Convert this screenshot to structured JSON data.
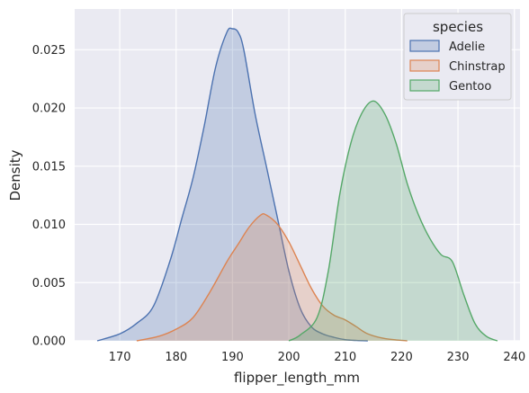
{
  "chart_data": {
    "type": "area",
    "xlabel": "flipper_length_mm",
    "ylabel": "Density",
    "xlim": [
      162,
      241
    ],
    "ylim": [
      0,
      0.0285
    ],
    "xticks": [
      170,
      180,
      190,
      200,
      210,
      220,
      230,
      240
    ],
    "yticks": [
      0.0,
      0.005,
      0.01,
      0.015,
      0.02,
      0.025
    ],
    "ytick_labels": [
      "0.000",
      "0.005",
      "0.010",
      "0.015",
      "0.020",
      "0.025"
    ],
    "grid": true,
    "background": "#eaeaf2",
    "legend": {
      "title": "species",
      "placement": "top-right"
    },
    "series": [
      {
        "name": "Adelie",
        "color": "#4c72b0",
        "x": [
          166,
          170,
          173,
          176,
          179,
          181,
          183,
          185,
          187,
          189,
          190,
          191,
          192,
          194,
          196,
          198,
          200,
          202,
          204,
          206,
          208,
          210,
          212,
          214
        ],
        "y": [
          0.0,
          0.0006,
          0.0015,
          0.003,
          0.007,
          0.0105,
          0.014,
          0.0185,
          0.0235,
          0.0265,
          0.0268,
          0.0265,
          0.025,
          0.0195,
          0.015,
          0.0105,
          0.006,
          0.0028,
          0.0012,
          0.0006,
          0.0003,
          0.0001,
          3e-05,
          0.0
        ]
      },
      {
        "name": "Chinstrap",
        "color": "#dd8452",
        "x": [
          173,
          177,
          180,
          183,
          186,
          189,
          191,
          193,
          195,
          196,
          198,
          200,
          202,
          204,
          206,
          208,
          210,
          212,
          214,
          217,
          221
        ],
        "y": [
          0.0,
          0.0004,
          0.001,
          0.002,
          0.0042,
          0.0068,
          0.0083,
          0.0098,
          0.0108,
          0.0108,
          0.01,
          0.0085,
          0.0065,
          0.0045,
          0.003,
          0.0022,
          0.0018,
          0.0012,
          0.0006,
          0.0002,
          0.0
        ]
      },
      {
        "name": "Gentoo",
        "color": "#55a868",
        "x": [
          200,
          202,
          205,
          207,
          209,
          211,
          213,
          215,
          217,
          219,
          221,
          223,
          225,
          227,
          229,
          231,
          233,
          235,
          237
        ],
        "y": [
          0.0,
          0.0005,
          0.002,
          0.006,
          0.0125,
          0.017,
          0.0196,
          0.0206,
          0.0195,
          0.017,
          0.0135,
          0.0108,
          0.0088,
          0.0074,
          0.0068,
          0.004,
          0.0015,
          0.0004,
          0.0
        ]
      }
    ]
  }
}
